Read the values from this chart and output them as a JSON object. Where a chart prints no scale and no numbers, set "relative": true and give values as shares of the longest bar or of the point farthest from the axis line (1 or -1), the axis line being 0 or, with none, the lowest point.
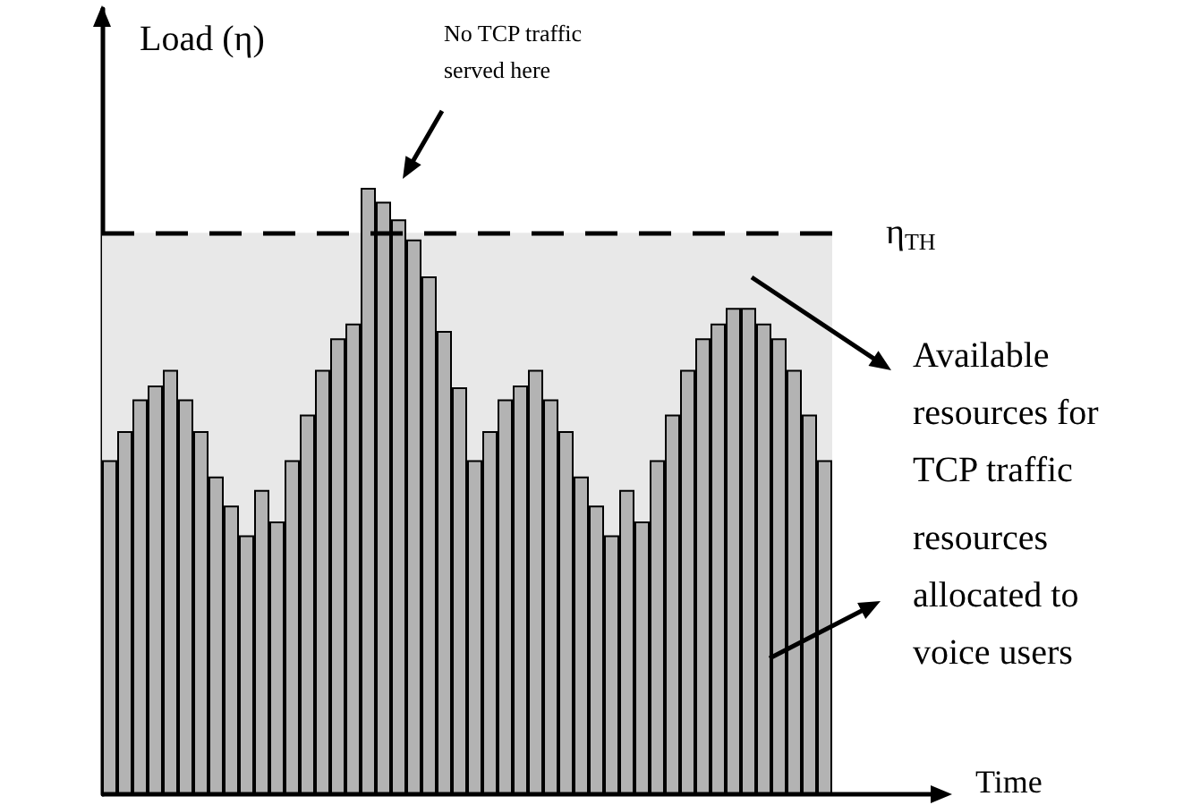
{
  "chart_data": {
    "type": "bar",
    "relative": true,
    "xlabel": "Time",
    "ylabel": "Load (η)",
    "color": "#b3b3b3",
    "categories": [
      null,
      null,
      null,
      null,
      null,
      null,
      null,
      null,
      null,
      null,
      null,
      null,
      null,
      null,
      null,
      null,
      null,
      null,
      null,
      null,
      null,
      null,
      null,
      null,
      null,
      null,
      null,
      null,
      null,
      null,
      null,
      null,
      null,
      null,
      null,
      null,
      null,
      null,
      null,
      null,
      null,
      null,
      null,
      null,
      null,
      null,
      null,
      null
    ],
    "values": [
      0.551,
      0.599,
      0.651,
      0.674,
      0.7,
      0.651,
      0.599,
      0.524,
      0.476,
      0.427,
      0.502,
      0.45,
      0.551,
      0.626,
      0.7,
      0.752,
      0.776,
      1.0,
      0.977,
      0.948,
      0.915,
      0.854,
      0.764,
      0.671,
      0.551,
      0.599,
      0.651,
      0.674,
      0.7,
      0.651,
      0.599,
      0.524,
      0.476,
      0.427,
      0.502,
      0.45,
      0.551,
      0.626,
      0.7,
      0.752,
      0.776,
      0.802,
      0.802,
      0.776,
      0.752,
      0.7,
      0.626,
      0.551
    ],
    "ref_lines": [
      {
        "axis": "y",
        "value": 0.926,
        "label": "η$_{TH}$",
        "line_style": "dashed",
        "color": "#000000"
      }
    ],
    "bands": [
      {
        "axis": "y",
        "from": 0,
        "to": 0.926,
        "color": "#e8e8e8"
      }
    ],
    "annotations": [
      "No TCP traffic served here",
      "Available resources for TCP traffic",
      "resources allocated to voice users"
    ]
  }
}
